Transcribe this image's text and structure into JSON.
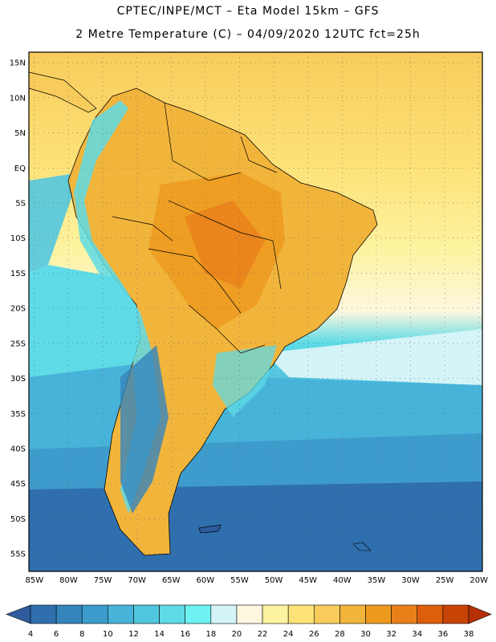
{
  "header": {
    "line1": "CPTEC/INPE/MCT –  Eta Model 15km – GFS",
    "line2": "2 Metre Temperature (C) – 04/09/2020 12UTC fct=25h"
  },
  "axes": {
    "lat_labels": [
      "15N",
      "10N",
      "5N",
      "EQ",
      "5S",
      "10S",
      "15S",
      "20S",
      "25S",
      "30S",
      "35S",
      "40S",
      "45S",
      "50S",
      "55S"
    ],
    "lat_values": [
      15,
      10,
      5,
      0,
      -5,
      -10,
      -15,
      -20,
      -25,
      -30,
      -35,
      -40,
      -45,
      -50,
      -55
    ],
    "lon_labels": [
      "85W",
      "80W",
      "75W",
      "70W",
      "65W",
      "60W",
      "55W",
      "50W",
      "45W",
      "40W",
      "35W",
      "30W",
      "25W",
      "20W"
    ],
    "lon_values": [
      -85,
      -80,
      -75,
      -70,
      -65,
      -60,
      -55,
      -50,
      -45,
      -40,
      -35,
      -30,
      -25,
      -20
    ],
    "lat_range": [
      -57.5,
      16.5
    ],
    "lon_range": [
      -85.8,
      -19.5
    ]
  },
  "colorbar": {
    "labels": [
      "4",
      "6",
      "8",
      "10",
      "12",
      "14",
      "16",
      "18",
      "20",
      "22",
      "24",
      "26",
      "28",
      "30",
      "32",
      "34",
      "36",
      "38"
    ],
    "colors": [
      "#2e5c9e",
      "#2f6fae",
      "#3585bd",
      "#3e9ccc",
      "#48b3d9",
      "#52c6df",
      "#5edbe6",
      "#6ef2f2",
      "#d4f4f8",
      "#fdf7df",
      "#fdf3a0",
      "#fde278",
      "#f8cc5c",
      "#f2b53c",
      "#ed9a1e",
      "#e8801a",
      "#dd5f0c",
      "#c84306",
      "#b63006"
    ]
  }
}
